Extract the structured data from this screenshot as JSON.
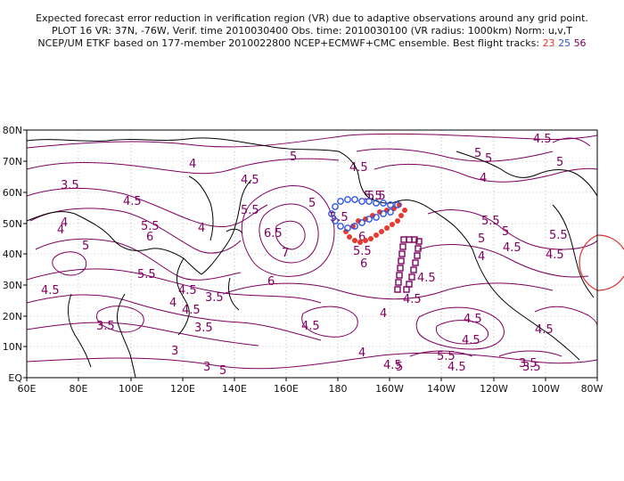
{
  "header": {
    "line1": "Expected forecast error reduction in verification region (VR) due to adaptive observations around any grid point.",
    "line2": "PLOT 16 VR: 37N, -76W, Verif. time 2010030400 Obs. time: 2010030100 (VR radius: 1000km) Norm: u,v,T",
    "line3_prefix": "NCEP/UM ETKF based on 177-member 2010022800 NCEP+ECMWF+CMC ensemble. Best flight tracks: ",
    "track_a": "23",
    "track_b": "25",
    "track_c": "56"
  },
  "map": {
    "lat_labels": [
      "80N",
      "70N",
      "60N",
      "50N",
      "40N",
      "30N",
      "20N",
      "10N",
      "EQ"
    ],
    "lon_labels": [
      "60E",
      "80E",
      "100E",
      "120E",
      "140E",
      "160E",
      "180",
      "160W",
      "140W",
      "120W",
      "100W",
      "80W"
    ],
    "contour_labels": [
      "4.5",
      "3.5",
      "4",
      "4.5",
      "5",
      "4.5",
      "5",
      "4.5",
      "4",
      "4",
      "5",
      "5.5",
      "6",
      "5.5",
      "4.5",
      "5.5",
      "6.5",
      "7",
      "6",
      "5.5",
      "5",
      "5.5",
      "6",
      "4",
      "4.5",
      "3.5",
      "4.5",
      "3.5",
      "4",
      "3.5",
      "3",
      "3",
      "4.5",
      "5",
      "4.5",
      "4",
      "5",
      "4",
      "4.5",
      "5.5",
      "4.5",
      "3.5",
      "4.5",
      "4",
      "5.5",
      "4.5",
      "5",
      "4.5",
      "4.5",
      "4.5",
      "3.5",
      "5",
      "4",
      "5.5",
      "5.5",
      "5.5",
      "6",
      "5",
      "4.5",
      "5"
    ],
    "verification_region": {
      "lat": 37,
      "lon": -76,
      "radius_km": 1000
    },
    "colors": {
      "contour": "#800060",
      "track_23": "#e8392e",
      "track_25": "#2e55d8",
      "track_56": "#800060",
      "coast": "#000000",
      "vr_circle": "#e03030"
    }
  }
}
